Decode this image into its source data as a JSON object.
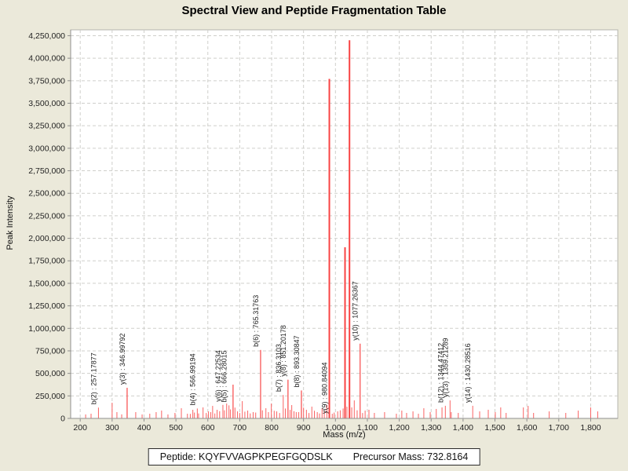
{
  "title": "Spectral View and Peptide Fragmentation Table",
  "footer": {
    "peptide_text": "Peptide: KQYFVVAGPKPEGFGQDSLK",
    "precursor_text": "Precursor Mass: 732.8164"
  },
  "chart_data": {
    "type": "bar",
    "title": "Spectral View and Peptide Fragmentation Table",
    "xlabel": "Mass (m/z)",
    "ylabel": "Peak Intensity",
    "xlim": [
      170,
      1885
    ],
    "ylim": [
      0,
      4315000
    ],
    "x_ticks": {
      "start": 200,
      "end": 1800,
      "step": 100
    },
    "y_ticks": {
      "start": 0,
      "end": 4250000,
      "step": 250000
    },
    "grid": true,
    "legend": false,
    "colors": {
      "background": "#ebe9da",
      "plot_background": "#ffffff",
      "grid": "#cfcfcb",
      "axis": "#8f8f8f",
      "border": "#b5b5ae",
      "peak": "#f96262",
      "peak_strong": "#f84444",
      "label_text": "#1c1c1c"
    },
    "labeled_peaks": [
      {
        "ion": "b(2)",
        "mz": "257.17877",
        "intensity": 120000
      },
      {
        "ion": "y(3)",
        "mz": "346.99792",
        "intensity": 340000
      },
      {
        "ion": "b(4)",
        "mz": "566.99194",
        "intensity": 110000
      },
      {
        "ion": "y(6)",
        "mz": "647.22534",
        "intensity": 150000
      },
      {
        "ion": "b(5)",
        "mz": "666.28015",
        "intensity": 145000
      },
      {
        "ion": "b(6)",
        "mz": "765.31763",
        "intensity": 760000
      },
      {
        "ion": "b(7)",
        "mz": "836.3103",
        "intensity": 260000
      },
      {
        "ion": "y(8)",
        "mz": "851.20178",
        "intensity": 430000
      },
      {
        "ion": "b(8)",
        "mz": "893.30847",
        "intensity": 310000
      },
      {
        "ion": "y(9)",
        "mz": "980.84094",
        "intensity": 3770000
      },
      {
        "ion": "y(10)",
        "mz": "1077.26367",
        "intensity": 830000
      },
      {
        "ion": "b(12)",
        "mz": "1344.47412",
        "intensity": 140000
      },
      {
        "ion": "y(13)",
        "mz": "1359.21289",
        "intensity": 200000
      },
      {
        "ion": "y(14)",
        "mz": "1430.28516",
        "intensity": 140000
      }
    ],
    "background_peaks": [
      [
        217,
        44000
      ],
      [
        234,
        52000
      ],
      [
        300,
        174000
      ],
      [
        315,
        70000
      ],
      [
        330,
        45000
      ],
      [
        374,
        70000
      ],
      [
        394,
        44000
      ],
      [
        418,
        52000
      ],
      [
        438,
        70000
      ],
      [
        455,
        87000
      ],
      [
        475,
        44000
      ],
      [
        497,
        61000
      ],
      [
        517,
        113000
      ],
      [
        536,
        52000
      ],
      [
        545,
        50000
      ],
      [
        553,
        96000
      ],
      [
        558,
        65000
      ],
      [
        571,
        55000
      ],
      [
        585,
        122000
      ],
      [
        595,
        60000
      ],
      [
        602,
        78000
      ],
      [
        609,
        70000
      ],
      [
        615,
        139000
      ],
      [
        622,
        55000
      ],
      [
        629,
        96000
      ],
      [
        637,
        80000
      ],
      [
        652,
        90000
      ],
      [
        659,
        165000
      ],
      [
        671,
        100000
      ],
      [
        679,
        375000
      ],
      [
        685,
        120000
      ],
      [
        693,
        78000
      ],
      [
        700,
        60000
      ],
      [
        708,
        192000
      ],
      [
        716,
        75000
      ],
      [
        725,
        87000
      ],
      [
        733,
        55000
      ],
      [
        742,
        70000
      ],
      [
        750,
        65000
      ],
      [
        771,
        90000
      ],
      [
        782,
        113000
      ],
      [
        790,
        70000
      ],
      [
        799,
        165000
      ],
      [
        808,
        85000
      ],
      [
        816,
        78000
      ],
      [
        825,
        60000
      ],
      [
        843,
        110000
      ],
      [
        858,
        95000
      ],
      [
        863,
        148000
      ],
      [
        870,
        80000
      ],
      [
        877,
        70000
      ],
      [
        885,
        70000
      ],
      [
        900,
        120000
      ],
      [
        909,
        96000
      ],
      [
        917,
        60000
      ],
      [
        926,
        131000
      ],
      [
        934,
        85000
      ],
      [
        943,
        70000
      ],
      [
        950,
        55000
      ],
      [
        958,
        113000
      ],
      [
        965,
        90000
      ],
      [
        973,
        150000
      ],
      [
        990,
        52000
      ],
      [
        996,
        65000
      ],
      [
        1007,
        78000
      ],
      [
        1015,
        90000
      ],
      [
        1024,
        110000
      ],
      [
        1030,
        1900000
      ],
      [
        1036,
        130000
      ],
      [
        1044,
        4200000
      ],
      [
        1051,
        122000
      ],
      [
        1059,
        200000
      ],
      [
        1068,
        90000
      ],
      [
        1085,
        60000
      ],
      [
        1093,
        87000
      ],
      [
        1105,
        96000
      ],
      [
        1122,
        61000
      ],
      [
        1154,
        70000
      ],
      [
        1191,
        52000
      ],
      [
        1208,
        87000
      ],
      [
        1223,
        61000
      ],
      [
        1243,
        78000
      ],
      [
        1260,
        52000
      ],
      [
        1277,
        113000
      ],
      [
        1297,
        70000
      ],
      [
        1316,
        105000
      ],
      [
        1334,
        122000
      ],
      [
        1363,
        70000
      ],
      [
        1385,
        61000
      ],
      [
        1452,
        78000
      ],
      [
        1479,
        96000
      ],
      [
        1501,
        70000
      ],
      [
        1518,
        122000
      ],
      [
        1535,
        61000
      ],
      [
        1589,
        122000
      ],
      [
        1604,
        139000
      ],
      [
        1621,
        61000
      ],
      [
        1670,
        78000
      ],
      [
        1722,
        61000
      ],
      [
        1761,
        87000
      ],
      [
        1800,
        122000
      ],
      [
        1822,
        78000
      ]
    ]
  }
}
